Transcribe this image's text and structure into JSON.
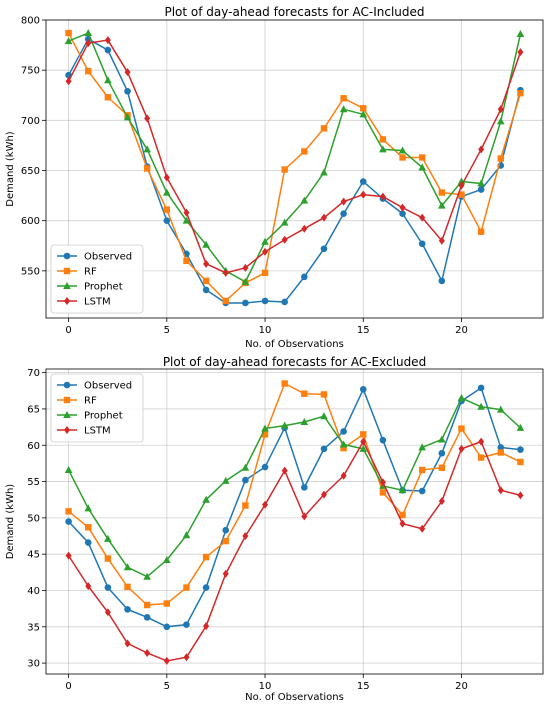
{
  "chart_data": [
    {
      "type": "line",
      "title": "Plot of day-ahead forecasts for AC-Included",
      "xlabel": "No. of Observations",
      "ylabel": "Demand (kWh)",
      "xlim": [
        -1.15,
        24.15
      ],
      "ylim": [
        503,
        800
      ],
      "xticks": [
        0,
        5,
        10,
        15,
        20
      ],
      "yticks": [
        550,
        600,
        650,
        700,
        750,
        800
      ],
      "grid": true,
      "legend_position": "lower-left",
      "x": [
        0,
        1,
        2,
        3,
        4,
        5,
        6,
        7,
        8,
        9,
        10,
        11,
        12,
        13,
        14,
        15,
        16,
        17,
        18,
        19,
        20,
        21,
        22,
        23
      ],
      "series": [
        {
          "name": "Observed",
          "color": "#1f77b4",
          "marker": "circle",
          "values": [
            745,
            781,
            770,
            729,
            654,
            600,
            567,
            531,
            518,
            518,
            520,
            519,
            544,
            572,
            607,
            639,
            622,
            607,
            577,
            540,
            624,
            631,
            655,
            730
          ]
        },
        {
          "name": "RF",
          "color": "#ff7f0e",
          "marker": "square",
          "values": [
            787,
            749,
            723,
            705,
            652,
            611,
            560,
            540,
            520,
            538,
            548,
            651,
            669,
            692,
            722,
            712,
            681,
            663,
            663,
            628,
            626,
            589,
            662,
            727
          ]
        },
        {
          "name": "Prophet",
          "color": "#2ca02c",
          "marker": "triangle",
          "values": [
            779,
            787,
            740,
            703,
            671,
            628,
            600,
            576,
            550,
            539,
            579,
            598,
            620,
            648,
            711,
            706,
            671,
            670,
            653,
            615,
            639,
            637,
            699,
            786
          ]
        },
        {
          "name": "LSTM",
          "color": "#d62728",
          "marker": "diamond",
          "values": [
            739,
            777,
            780,
            748,
            702,
            643,
            608,
            557,
            548,
            553,
            569,
            581,
            592,
            603,
            619,
            626,
            624,
            613,
            603,
            580,
            635,
            671,
            711,
            768
          ]
        }
      ]
    },
    {
      "type": "line",
      "title": "Plot of day-ahead forecasts for AC-Excluded",
      "xlabel": "No. of Observations",
      "ylabel": "Demand (kWh)",
      "xlim": [
        -1.15,
        24.15
      ],
      "ylim": [
        28.5,
        70.5
      ],
      "xticks": [
        0,
        5,
        10,
        15,
        20
      ],
      "yticks": [
        30,
        35,
        40,
        45,
        50,
        55,
        60,
        65,
        70
      ],
      "grid": true,
      "legend_position": "upper-left",
      "x": [
        0,
        1,
        2,
        3,
        4,
        5,
        6,
        7,
        8,
        9,
        10,
        11,
        12,
        13,
        14,
        15,
        16,
        17,
        18,
        19,
        20,
        21,
        22,
        23
      ],
      "series": [
        {
          "name": "Observed",
          "color": "#1f77b4",
          "marker": "circle",
          "values": [
            49.5,
            46.6,
            40.4,
            37.4,
            36.3,
            35.0,
            35.3,
            40.4,
            48.3,
            55.2,
            57.0,
            62.4,
            54.2,
            59.5,
            61.9,
            67.7,
            60.7,
            53.8,
            53.7,
            58.9,
            66.1,
            67.9,
            59.7,
            59.4
          ]
        },
        {
          "name": "RF",
          "color": "#ff7f0e",
          "marker": "square",
          "values": [
            50.9,
            48.7,
            44.4,
            40.5,
            38.0,
            38.2,
            40.4,
            44.6,
            46.8,
            51.7,
            61.5,
            68.5,
            67.1,
            67.0,
            59.6,
            61.5,
            53.5,
            50.4,
            56.6,
            56.9,
            62.3,
            58.3,
            59.0,
            57.7
          ]
        },
        {
          "name": "Prophet",
          "color": "#2ca02c",
          "marker": "triangle",
          "values": [
            56.6,
            51.3,
            47.1,
            43.2,
            41.9,
            44.2,
            47.6,
            52.5,
            55.1,
            56.9,
            62.3,
            62.7,
            63.2,
            64.0,
            60.1,
            59.5,
            54.4,
            53.8,
            59.7,
            60.8,
            66.5,
            65.3,
            64.9,
            62.4
          ]
        },
        {
          "name": "LSTM",
          "color": "#d62728",
          "marker": "diamond",
          "values": [
            44.8,
            40.6,
            37.0,
            32.7,
            31.4,
            30.3,
            30.8,
            35.1,
            42.3,
            47.5,
            51.8,
            56.5,
            50.2,
            53.2,
            55.8,
            60.5,
            54.9,
            49.2,
            48.5,
            52.3,
            59.5,
            60.5,
            53.8,
            53.1
          ]
        }
      ]
    }
  ]
}
